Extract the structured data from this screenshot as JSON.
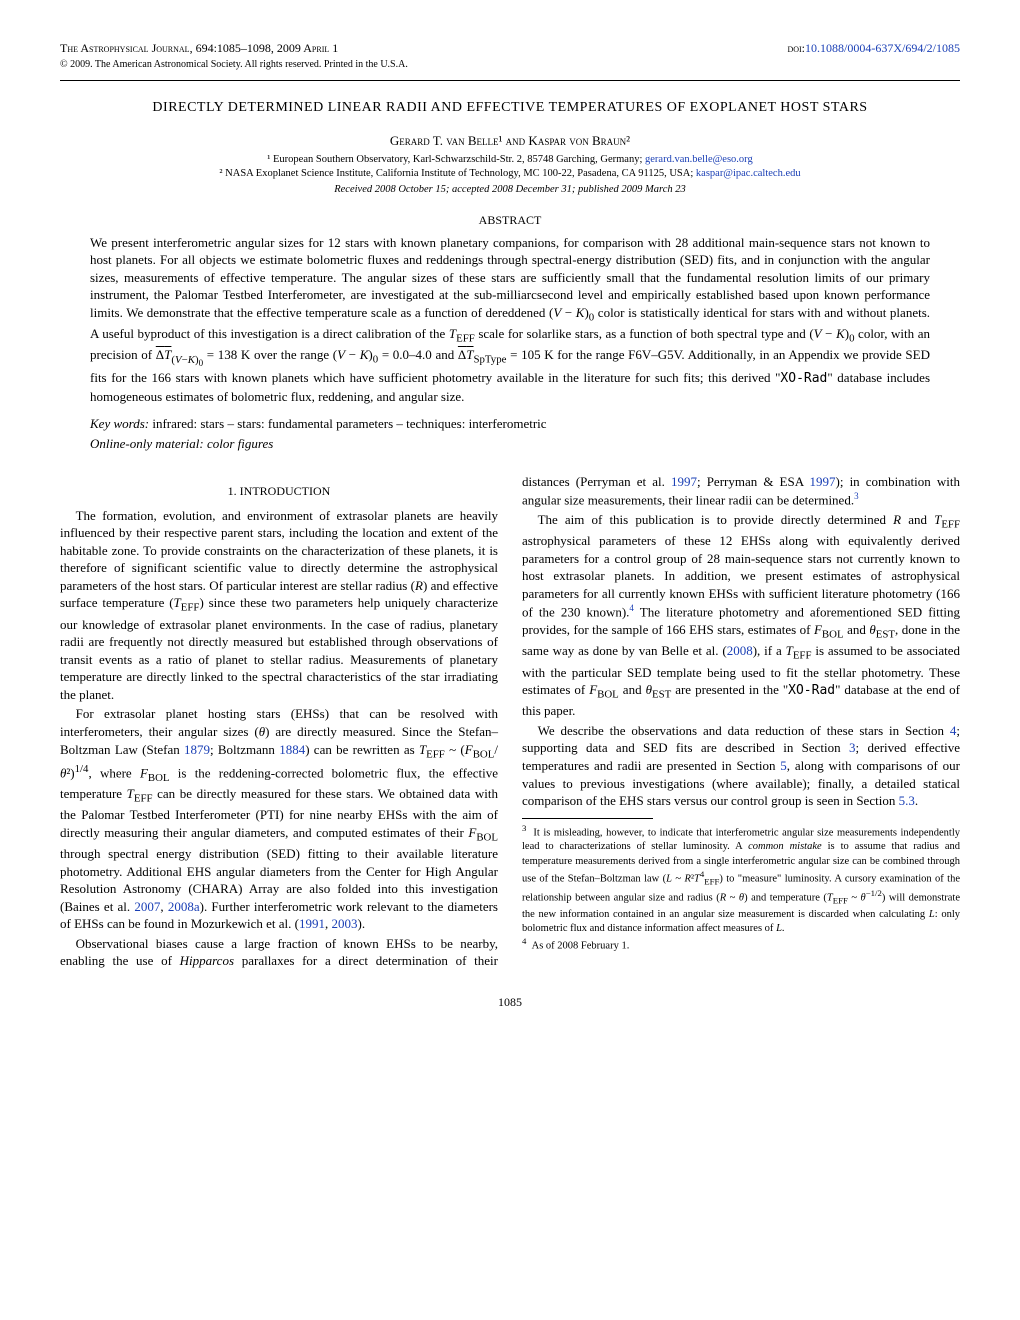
{
  "header": {
    "journal": "The Astrophysical Journal, 694:1085–1098, 2009 April 1",
    "doi_label": "doi:",
    "doi_link": "10.1088/0004-637X/694/2/1085",
    "copyright": "© 2009. The American Astronomical Society. All rights reserved. Printed in the U.S.A."
  },
  "title": "DIRECTLY DETERMINED LINEAR RADII AND EFFECTIVE TEMPERATURES OF EXOPLANET HOST STARS",
  "authors": "Gerard T. van Belle¹ and Kaspar von Braun²",
  "affiliations": [
    "¹ European Southern Observatory, Karl-Schwarzschild-Str. 2, 85748 Garching, Germany; ",
    "² NASA Exoplanet Science Institute, California Institute of Technology, MC 100-22, Pasadena, CA 91125, USA; "
  ],
  "emails": [
    "gerard.van.belle@eso.org",
    "kaspar@ipac.caltech.edu"
  ],
  "received": "Received 2008 October 15; accepted 2008 December 31; published 2009 March 23",
  "abstract_head": "ABSTRACT",
  "abstract": "We present interferometric angular sizes for 12 stars with known planetary companions, for comparison with 28 additional main-sequence stars not known to host planets. For all objects we estimate bolometric fluxes and reddenings through spectral-energy distribution (SED) fits, and in conjunction with the angular sizes, measurements of effective temperature. The angular sizes of these stars are sufficiently small that the fundamental resolution limits of our primary instrument, the Palomar Testbed Interferometer, are investigated at the sub-milliarcsecond level and empirically established based upon known performance limits. We demonstrate that the effective temperature scale as a function of dereddened (V − K)₀ color is statistically identical for stars with and without planets. A useful byproduct of this investigation is a direct calibration of the T_EFF scale for solarlike stars, as a function of both spectral type and (V − K)₀ color, with an precision of ΔT_(V−K)₀ = 138 K over the range (V − K)₀ = 0.0–4.0 and ΔT_SpType = 105 K for the range F6V–G5V. Additionally, in an Appendix we provide SED fits for the 166 stars with known planets which have sufficient photometry available in the literature for such fits; this derived \"XO-Rad\" database includes homogeneous estimates of bolometric flux, reddening, and angular size.",
  "keywords_label": "Key words:",
  "keywords": "infrared: stars – stars: fundamental parameters – techniques: interferometric",
  "online_label": "Online-only material:",
  "online": "color figures",
  "section1_head": "1. INTRODUCTION",
  "para1": "The formation, evolution, and environment of extrasolar planets are heavily influenced by their respective parent stars, including the location and extent of the habitable zone. To provide constraints on the characterization of these planets, it is therefore of significant scientific value to directly determine the astrophysical parameters of the host stars. Of particular interest are stellar radius (R) and effective surface temperature (T_EFF) since these two parameters help uniquely characterize our knowledge of extrasolar planet environments. In the case of radius, planetary radii are frequently not directly measured but established through observations of transit events as a ratio of planet to stellar radius. Measurements of planetary temperature are directly linked to the spectral characteristics of the star irradiating the planet.",
  "para2": "For extrasolar planet hosting stars (EHSs) that can be resolved with interferometers, their angular sizes (θ) are directly measured. Since the Stefan–Boltzman Law (Stefan 1879; Boltzmann 1884) can be rewritten as T_EFF ~ (F_BOL/θ²)^1/4, where F_BOL is the reddening-corrected bolometric flux, the effective temperature T_EFF can be directly measured for these stars. We obtained data with the Palomar Testbed Interferometer (PTI) for nine nearby EHSs with the aim of directly measuring their angular diameters, and computed estimates of their F_BOL through spectral energy distribution (SED) fitting to their available literature photometry. Additional EHS angular diameters from the Center for High Angular Resolution Astronomy (CHARA) Array are also folded into this investigation (Baines et al. 2007, 2008a). Further interferometric work relevant to the diameters of EHSs can be found in Mozurkewich et al. (1991, 2003).",
  "para3": "Observational biases cause a large fraction of known EHSs to be nearby, enabling the use of Hipparcos parallaxes for a direct",
  "para4": "determination of their distances (Perryman et al. 1997; Perryman & ESA 1997); in combination with angular size measurements, their linear radii can be determined.³",
  "para5": "The aim of this publication is to provide directly determined R and T_EFF astrophysical parameters of these 12 EHSs along with equivalently derived parameters for a control group of 28 main-sequence stars not currently known to host extrasolar planets. In addition, we present estimates of astrophysical parameters for all currently known EHSs with sufficient literature photometry (166 of the 230 known).⁴ The literature photometry and aforementioned SED fitting provides, for the sample of 166 EHS stars, estimates of F_BOL and θ_EST, done in the same way as done by van Belle et al. (2008), if a T_EFF is assumed to be associated with the particular SED template being used to fit the stellar photometry. These estimates of F_BOL and θ_EST are presented in the \"XO-Rad\" database at the end of this paper.",
  "para6": "We describe the observations and data reduction of these stars in Section 4; supporting data and SED fits are described in Section 3; derived effective temperatures and radii are presented in Section 5, along with comparisons of our values to previous investigations (where available); finally, a detailed statical comparison of the EHS stars versus our control group is seen in Section 5.3.",
  "footnote3": "³  It is misleading, however, to indicate that interferometric angular size measurements independently lead to characterizations of stellar luminosity. A common mistake is to assume that radius and temperature measurements derived from a single interferometric angular size can be combined through use of the Stefan–Boltzman law (L ~ R²T⁴_EFF) to \"measure\" luminosity. A cursory examination of the relationship between angular size and radius (R ~ θ) and temperature (T_EFF ~ θ^−1/2) will demonstrate the new information contained in an angular size measurement is discarded when calculating L: only bolometric flux and distance information affect measures of L.",
  "footnote4": "⁴  As of 2008 February 1.",
  "pagenum": "1085",
  "years": {
    "stefan": "1879",
    "boltzmann": "1884",
    "baines1": "2007",
    "baines2": "2008a",
    "mozur1": "1991",
    "mozur2": "2003",
    "perryman": "1997",
    "perryman_esa": "1997",
    "vanbelle": "2008"
  },
  "colors": {
    "link": "#1a3fb5"
  }
}
